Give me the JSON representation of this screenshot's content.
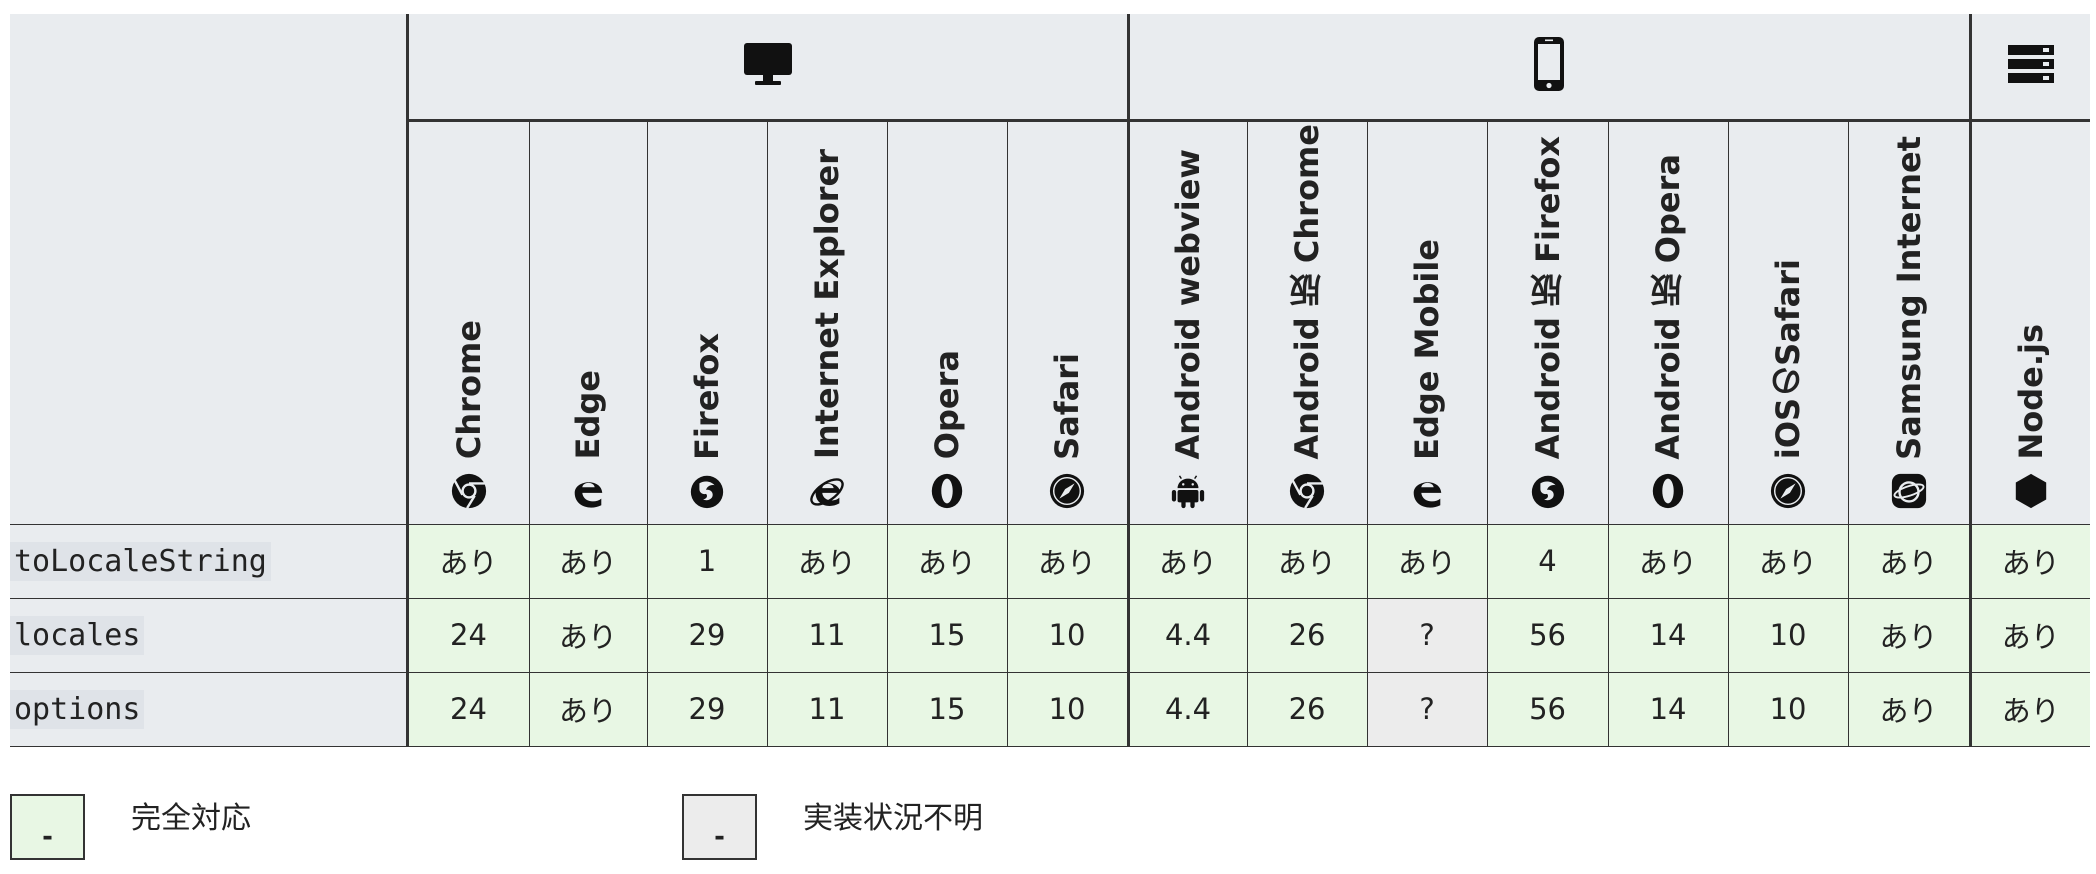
{
  "platforms": {
    "desktop": {
      "icon": "desktop-icon"
    },
    "mobile": {
      "icon": "mobile-icon"
    },
    "server": {
      "icon": "server-icon"
    }
  },
  "browsers": [
    {
      "label": "Chrome",
      "icon": "chrome-icon"
    },
    {
      "label": "Edge",
      "icon": "edge-icon"
    },
    {
      "label": "Firefox",
      "icon": "firefox-icon"
    },
    {
      "label": "Internet Explorer",
      "icon": "ie-icon"
    },
    {
      "label": "Opera",
      "icon": "opera-icon"
    },
    {
      "label": "Safari",
      "icon": "safari-icon"
    },
    {
      "label": "Android webview",
      "icon": "android-icon"
    },
    {
      "label": "Android 版 Chrome",
      "icon": "chrome-icon"
    },
    {
      "label": "Edge Mobile",
      "icon": "edge-icon"
    },
    {
      "label": "Android 版 Firefox",
      "icon": "firefox-icon"
    },
    {
      "label": "Android 版 Opera",
      "icon": "opera-icon"
    },
    {
      "label": "iOSのSafari",
      "icon": "safari-icon"
    },
    {
      "label": "Samsung Internet",
      "icon": "samsung-internet-icon"
    },
    {
      "label": "Node.js",
      "icon": "nodejs-icon"
    }
  ],
  "features": [
    {
      "name": "toLocaleString",
      "support": [
        "あり",
        "あり",
        "1",
        "あり",
        "あり",
        "あり",
        "あり",
        "あり",
        "あり",
        "4",
        "あり",
        "あり",
        "あり",
        "あり"
      ]
    },
    {
      "name": "locales",
      "support": [
        "24",
        "あり",
        "29",
        "11",
        "15",
        "10",
        "4.4",
        "26",
        "?",
        "56",
        "14",
        "10",
        "あり",
        "あり"
      ]
    },
    {
      "name": "options",
      "support": [
        "24",
        "あり",
        "29",
        "11",
        "15",
        "10",
        "4.4",
        "26",
        "?",
        "56",
        "14",
        "10",
        "あり",
        "あり"
      ]
    }
  ],
  "legend": {
    "full": {
      "swatch": "-",
      "label": "完全対応"
    },
    "unknown": {
      "swatch": "-",
      "label": "実装状況不明"
    }
  },
  "colors": {
    "full_support": "#e8f7e4",
    "unknown": "#ececec",
    "header_bg": "#e9ecef",
    "border": "#333333"
  }
}
